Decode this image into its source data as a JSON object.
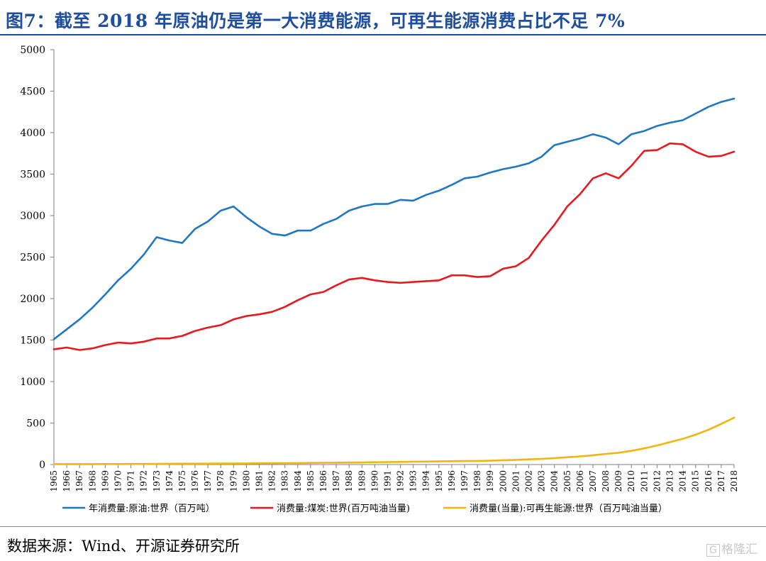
{
  "header": {
    "title": "图7：截至 2018 年原油仍是第一大消费能源，可再生能源消费占比不足 7%"
  },
  "footer": {
    "source": "数据来源：Wind、开源证券研究所",
    "watermark_icon": "gelonghui-logo-icon",
    "watermark_text": "格隆汇"
  },
  "chart_data": {
    "type": "line",
    "title": "",
    "xlabel": "",
    "ylabel": "",
    "ylim": [
      0,
      5000
    ],
    "yticks": [
      0,
      500,
      1000,
      1500,
      2000,
      2500,
      3000,
      3500,
      4000,
      4500,
      5000
    ],
    "grid": false,
    "legend_position": "bottom",
    "x": [
      "1965",
      "1966",
      "1967",
      "1968",
      "1969",
      "1970",
      "1971",
      "1972",
      "1973",
      "1974",
      "1975",
      "1976",
      "1977",
      "1978",
      "1979",
      "1980",
      "1981",
      "1982",
      "1983",
      "1984",
      "1985",
      "1986",
      "1987",
      "1988",
      "1989",
      "1990",
      "1991",
      "1992",
      "1993",
      "1994",
      "1995",
      "1996",
      "1997",
      "1998",
      "1999",
      "2000",
      "2001",
      "2002",
      "2003",
      "2004",
      "2005",
      "2006",
      "2007",
      "2008",
      "2009",
      "2010",
      "2011",
      "2012",
      "2013",
      "2014",
      "2015",
      "2016",
      "2017",
      "2018"
    ],
    "series": [
      {
        "name": "年消费量:原油:世界（百万吨）",
        "color": "#1f77c4",
        "values": [
          1510,
          1630,
          1750,
          1890,
          2050,
          2220,
          2360,
          2530,
          2740,
          2700,
          2670,
          2840,
          2930,
          3060,
          3110,
          2980,
          2870,
          2780,
          2760,
          2820,
          2820,
          2900,
          2960,
          3060,
          3110,
          3140,
          3140,
          3190,
          3180,
          3250,
          3300,
          3370,
          3450,
          3470,
          3520,
          3560,
          3590,
          3630,
          3710,
          3850,
          3890,
          3930,
          3980,
          3940,
          3860,
          3980,
          4020,
          4080,
          4120,
          4150,
          4230,
          4310,
          4370,
          4410
        ]
      },
      {
        "name": "消费量:煤炭:世界(百万吨油当量)",
        "color": "#e8191e",
        "values": [
          1390,
          1410,
          1380,
          1400,
          1440,
          1470,
          1460,
          1480,
          1520,
          1520,
          1550,
          1610,
          1650,
          1680,
          1750,
          1790,
          1810,
          1840,
          1900,
          1980,
          2050,
          2080,
          2160,
          2230,
          2250,
          2220,
          2200,
          2190,
          2200,
          2210,
          2220,
          2280,
          2280,
          2260,
          2270,
          2360,
          2390,
          2490,
          2700,
          2890,
          3110,
          3260,
          3450,
          3510,
          3450,
          3600,
          3780,
          3790,
          3870,
          3860,
          3770,
          3710,
          3720,
          3770
        ]
      },
      {
        "name": "消费量(当量):可再生能源:世界（百万吨油当量）",
        "color": "#f2b50f",
        "values": [
          5,
          5,
          5,
          5,
          6,
          6,
          7,
          7,
          8,
          9,
          10,
          10,
          11,
          12,
          13,
          14,
          15,
          16,
          17,
          18,
          20,
          21,
          22,
          24,
          26,
          28,
          30,
          32,
          34,
          36,
          38,
          40,
          42,
          44,
          46,
          52,
          56,
          62,
          68,
          78,
          88,
          98,
          112,
          128,
          142,
          165,
          195,
          230,
          270,
          310,
          360,
          420,
          490,
          565
        ]
      }
    ]
  }
}
